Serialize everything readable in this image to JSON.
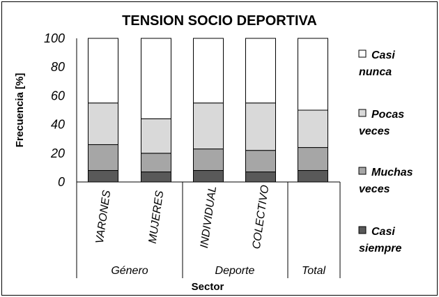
{
  "chart_data": {
    "type": "bar",
    "stacked": true,
    "title": "TENSION SOCIO DEPORTIVA",
    "xlabel": "Sector",
    "ylabel": "Frecuencia [%]",
    "ylim": [
      0,
      100
    ],
    "yticks": [
      "0",
      "20",
      "40",
      "60",
      "80",
      "100"
    ],
    "categories": [
      "VARONES",
      "MUJERES",
      "INDIVIDUAL",
      "COLECTIVO",
      "Total"
    ],
    "groups": [
      {
        "label": "Género",
        "categories": [
          "VARONES",
          "MUJERES"
        ]
      },
      {
        "label": "Deporte",
        "categories": [
          "INDIVIDUAL",
          "COLECTIVO"
        ]
      },
      {
        "label": "Total",
        "categories": [
          "Total"
        ]
      }
    ],
    "series": [
      {
        "name": [
          "Casi",
          "siempre"
        ],
        "color": "#595959",
        "values": [
          8,
          7,
          8,
          7,
          8
        ]
      },
      {
        "name": [
          "Muchas",
          "veces"
        ],
        "color": "#a6a6a6",
        "values": [
          18,
          13,
          15,
          15,
          16
        ]
      },
      {
        "name": [
          "Pocas",
          "veces"
        ],
        "color": "#d9d9d9",
        "values": [
          29,
          24,
          32,
          33,
          26
        ]
      },
      {
        "name": [
          "Casi",
          "nunca"
        ],
        "color": "#ffffff",
        "values": [
          45,
          56,
          45,
          45,
          50
        ]
      }
    ],
    "legend_position": "right",
    "grid": false
  }
}
